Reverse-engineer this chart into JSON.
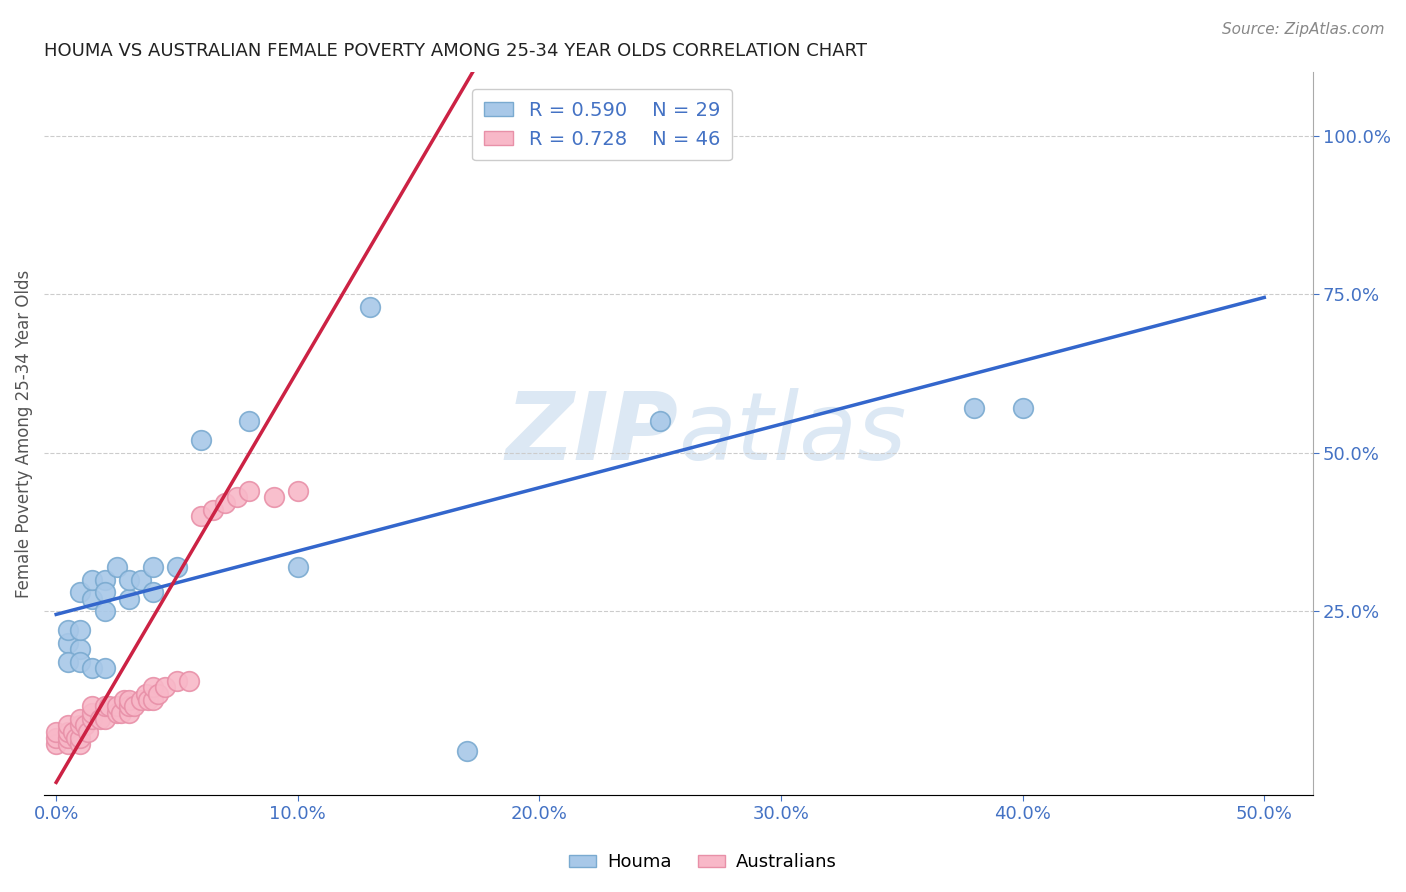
{
  "title": "HOUMA VS AUSTRALIAN FEMALE POVERTY AMONG 25-34 YEAR OLDS CORRELATION CHART",
  "source": "Source: ZipAtlas.com",
  "xlabel_ticks": [
    "0.0%",
    "10.0%",
    "20.0%",
    "30.0%",
    "40.0%",
    "50.0%"
  ],
  "xlabel_vals": [
    0.0,
    0.1,
    0.2,
    0.3,
    0.4,
    0.5
  ],
  "ylabel": "Female Poverty Among 25-34 Year Olds",
  "ylabel_ticks_right": [
    "100.0%",
    "75.0%",
    "50.0%",
    "25.0%"
  ],
  "ylabel_vals_right": [
    1.0,
    0.75,
    0.5,
    0.25
  ],
  "xlim": [
    -0.005,
    0.52
  ],
  "ylim": [
    -0.04,
    1.1
  ],
  "houma_color": "#a8c8e8",
  "houma_edge": "#7aaad0",
  "australian_color": "#f8b8c8",
  "australian_edge": "#e890a8",
  "line_houma_color": "#3366cc",
  "line_australian_color": "#cc2244",
  "legend_text_color": "#4472c4",
  "watermark_color": "#dce8f4",
  "R_houma": 0.59,
  "N_houma": 29,
  "R_australian": 0.728,
  "N_australian": 46,
  "houma_x": [
    0.005,
    0.005,
    0.01,
    0.01,
    0.01,
    0.015,
    0.015,
    0.02,
    0.02,
    0.02,
    0.025,
    0.03,
    0.03,
    0.035,
    0.04,
    0.04,
    0.05,
    0.06,
    0.08,
    0.38,
    0.4,
    0.005,
    0.01,
    0.015,
    0.02,
    0.1,
    0.13,
    0.25,
    0.17
  ],
  "houma_y": [
    0.2,
    0.22,
    0.19,
    0.22,
    0.28,
    0.27,
    0.3,
    0.25,
    0.3,
    0.28,
    0.32,
    0.27,
    0.3,
    0.3,
    0.28,
    0.32,
    0.32,
    0.52,
    0.55,
    0.57,
    0.57,
    0.17,
    0.17,
    0.16,
    0.16,
    0.32,
    0.73,
    0.55,
    0.03
  ],
  "australian_x": [
    0.0,
    0.0,
    0.0,
    0.005,
    0.005,
    0.005,
    0.005,
    0.007,
    0.008,
    0.01,
    0.01,
    0.01,
    0.01,
    0.012,
    0.013,
    0.015,
    0.015,
    0.015,
    0.018,
    0.02,
    0.02,
    0.022,
    0.025,
    0.025,
    0.027,
    0.028,
    0.03,
    0.03,
    0.03,
    0.032,
    0.035,
    0.037,
    0.038,
    0.04,
    0.04,
    0.042,
    0.045,
    0.05,
    0.055,
    0.06,
    0.065,
    0.07,
    0.075,
    0.08,
    0.09,
    0.1
  ],
  "australian_y": [
    0.04,
    0.05,
    0.06,
    0.04,
    0.05,
    0.06,
    0.07,
    0.06,
    0.05,
    0.04,
    0.05,
    0.07,
    0.08,
    0.07,
    0.06,
    0.08,
    0.09,
    0.1,
    0.08,
    0.08,
    0.1,
    0.1,
    0.09,
    0.1,
    0.09,
    0.11,
    0.09,
    0.1,
    0.11,
    0.1,
    0.11,
    0.12,
    0.11,
    0.11,
    0.13,
    0.12,
    0.13,
    0.14,
    0.14,
    0.4,
    0.41,
    0.42,
    0.43,
    0.44,
    0.43,
    0.44
  ],
  "grid_color": "#cccccc",
  "background_color": "#ffffff",
  "houma_line_intercept": 0.245,
  "houma_line_slope": 1.0,
  "australian_line_intercept": -0.02,
  "australian_line_slope": 6.5
}
